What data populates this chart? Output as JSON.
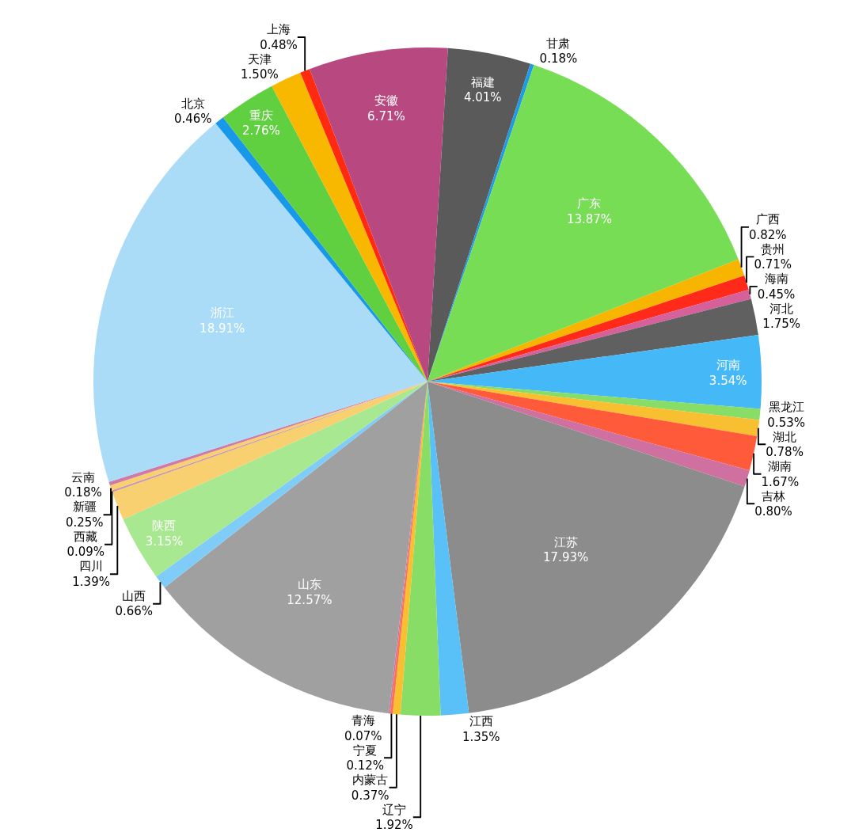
{
  "chart_data": {
    "type": "pie",
    "categories": [
      "福建",
      "甘肃",
      "广东",
      "广西",
      "贵州",
      "海南",
      "河北",
      "河南",
      "黑龙江",
      "湖北",
      "湖南",
      "吉林",
      "江苏",
      "江西",
      "辽宁",
      "内蒙古",
      "宁夏",
      "青海",
      "山东",
      "山西",
      "陕西",
      "四川",
      "西藏",
      "新疆",
      "云南",
      "浙江",
      "北京",
      "重庆",
      "天津",
      "上海",
      "安徽"
    ],
    "values": [
      4.01,
      0.18,
      13.87,
      0.82,
      0.71,
      0.45,
      1.75,
      3.54,
      0.53,
      0.78,
      1.67,
      0.8,
      17.93,
      1.35,
      1.92,
      0.37,
      0.12,
      0.07,
      12.57,
      0.66,
      3.15,
      1.39,
      0.09,
      0.25,
      0.18,
      18.91,
      0.46,
      2.76,
      1.5,
      0.48,
      6.71
    ],
    "value_labels": [
      "4.01%",
      "0.18%",
      "13.87%",
      "0.82%",
      "0.71%",
      "0.45%",
      "1.75%",
      "3.54%",
      "0.53%",
      "0.78%",
      "1.67%",
      "0.80%",
      "17.93%",
      "1.35%",
      "1.92%",
      "0.37%",
      "0.12%",
      "0.07%",
      "12.57%",
      "0.66%",
      "3.15%",
      "1.39%",
      "0.09%",
      "0.25%",
      "0.18%",
      "18.91%",
      "0.46%",
      "2.76%",
      "1.50%",
      "0.48%",
      "6.71%"
    ],
    "colors": [
      "#5a5a5a",
      "#1e9be8",
      "#77dd55",
      "#f8b500",
      "#ff2a1a",
      "#d6609a",
      "#606060",
      "#45b8f8",
      "#88dd66",
      "#f8c030",
      "#ff5a3a",
      "#d070a0",
      "#8c8c8c",
      "#5ac0f8",
      "#88dd66",
      "#f8c030",
      "#ff7050",
      "#d070a0",
      "#a0a0a0",
      "#80ccf8",
      "#a8e890",
      "#f8d070",
      "#c898b0",
      "#f8d070",
      "#d07aa8",
      "#aadcf8",
      "#1898e8",
      "#60d040",
      "#f8b800",
      "#ff2a10",
      "#b84880"
    ],
    "legend": false
  }
}
